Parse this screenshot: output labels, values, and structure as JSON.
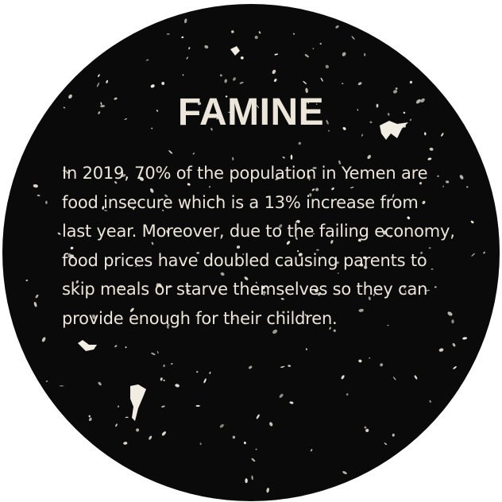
{
  "colors": {
    "circle": "#0a0a0a",
    "background": "#ffffff",
    "text": "#ece6da",
    "speckle": "#f2ede3"
  },
  "title": "FAMINE",
  "body_lines": [
    "In 2019, 70% of the population in Yemen are",
    "food insecure which is a 13% increase from",
    "last year. Moreover, due to the failing economy,",
    "food prices have doubled causing parents to",
    "skip meals or starve themselves so they can",
    "provide enough for their children."
  ]
}
